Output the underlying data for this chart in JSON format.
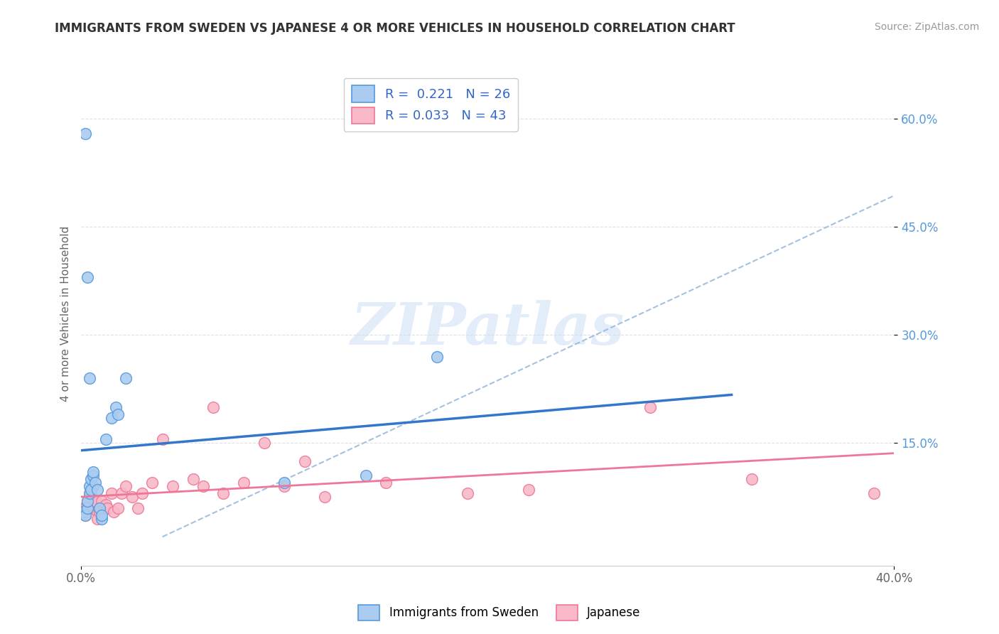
{
  "title": "IMMIGRANTS FROM SWEDEN VS JAPANESE 4 OR MORE VEHICLES IN HOUSEHOLD CORRELATION CHART",
  "source": "Source: ZipAtlas.com",
  "ylabel": "4 or more Vehicles in Household",
  "xlim": [
    0.0,
    0.4
  ],
  "ylim": [
    -0.02,
    0.68
  ],
  "xtick_positions": [
    0.0,
    0.4
  ],
  "xticklabels": [
    "0.0%",
    "40.0%"
  ],
  "ytick_positions": [
    0.15,
    0.3,
    0.45,
    0.6
  ],
  "ytick_labels": [
    "15.0%",
    "30.0%",
    "45.0%",
    "60.0%"
  ],
  "sweden_R": 0.221,
  "sweden_N": 26,
  "japan_R": 0.033,
  "japan_N": 43,
  "sweden_color": "#aaccf0",
  "sweden_edge_color": "#5599dd",
  "sweden_line_color": "#3377cc",
  "japan_color": "#f8b8c8",
  "japan_edge_color": "#ee7799",
  "japan_line_color": "#ee7799",
  "dash_color": "#99bbdd",
  "watermark_text": "ZIPatlas",
  "legend_label_1": "Immigrants from Sweden",
  "legend_label_2": "Japanese",
  "sweden_x": [
    0.001,
    0.002,
    0.003,
    0.003,
    0.004,
    0.004,
    0.005,
    0.005,
    0.006,
    0.006,
    0.007,
    0.008,
    0.009,
    0.01,
    0.01,
    0.012,
    0.015,
    0.017,
    0.018,
    0.022,
    0.1,
    0.14,
    0.175,
    0.002,
    0.003,
    0.004
  ],
  "sweden_y": [
    0.055,
    0.05,
    0.06,
    0.07,
    0.08,
    0.09,
    0.1,
    0.085,
    0.105,
    0.11,
    0.095,
    0.085,
    0.06,
    0.045,
    0.05,
    0.155,
    0.185,
    0.2,
    0.19,
    0.24,
    0.095,
    0.105,
    0.27,
    0.58,
    0.38,
    0.24
  ],
  "japan_x": [
    0.001,
    0.002,
    0.002,
    0.003,
    0.004,
    0.004,
    0.005,
    0.005,
    0.006,
    0.007,
    0.008,
    0.008,
    0.009,
    0.01,
    0.011,
    0.012,
    0.013,
    0.015,
    0.016,
    0.018,
    0.02,
    0.022,
    0.025,
    0.028,
    0.03,
    0.035,
    0.04,
    0.045,
    0.055,
    0.06,
    0.065,
    0.07,
    0.08,
    0.09,
    0.1,
    0.11,
    0.12,
    0.15,
    0.19,
    0.22,
    0.28,
    0.33,
    0.39
  ],
  "japan_y": [
    0.06,
    0.05,
    0.06,
    0.07,
    0.065,
    0.075,
    0.08,
    0.06,
    0.09,
    0.07,
    0.055,
    0.045,
    0.055,
    0.07,
    0.06,
    0.065,
    0.06,
    0.08,
    0.055,
    0.06,
    0.08,
    0.09,
    0.075,
    0.06,
    0.08,
    0.095,
    0.155,
    0.09,
    0.1,
    0.09,
    0.2,
    0.08,
    0.095,
    0.15,
    0.09,
    0.125,
    0.075,
    0.095,
    0.08,
    0.085,
    0.2,
    0.1,
    0.08
  ]
}
